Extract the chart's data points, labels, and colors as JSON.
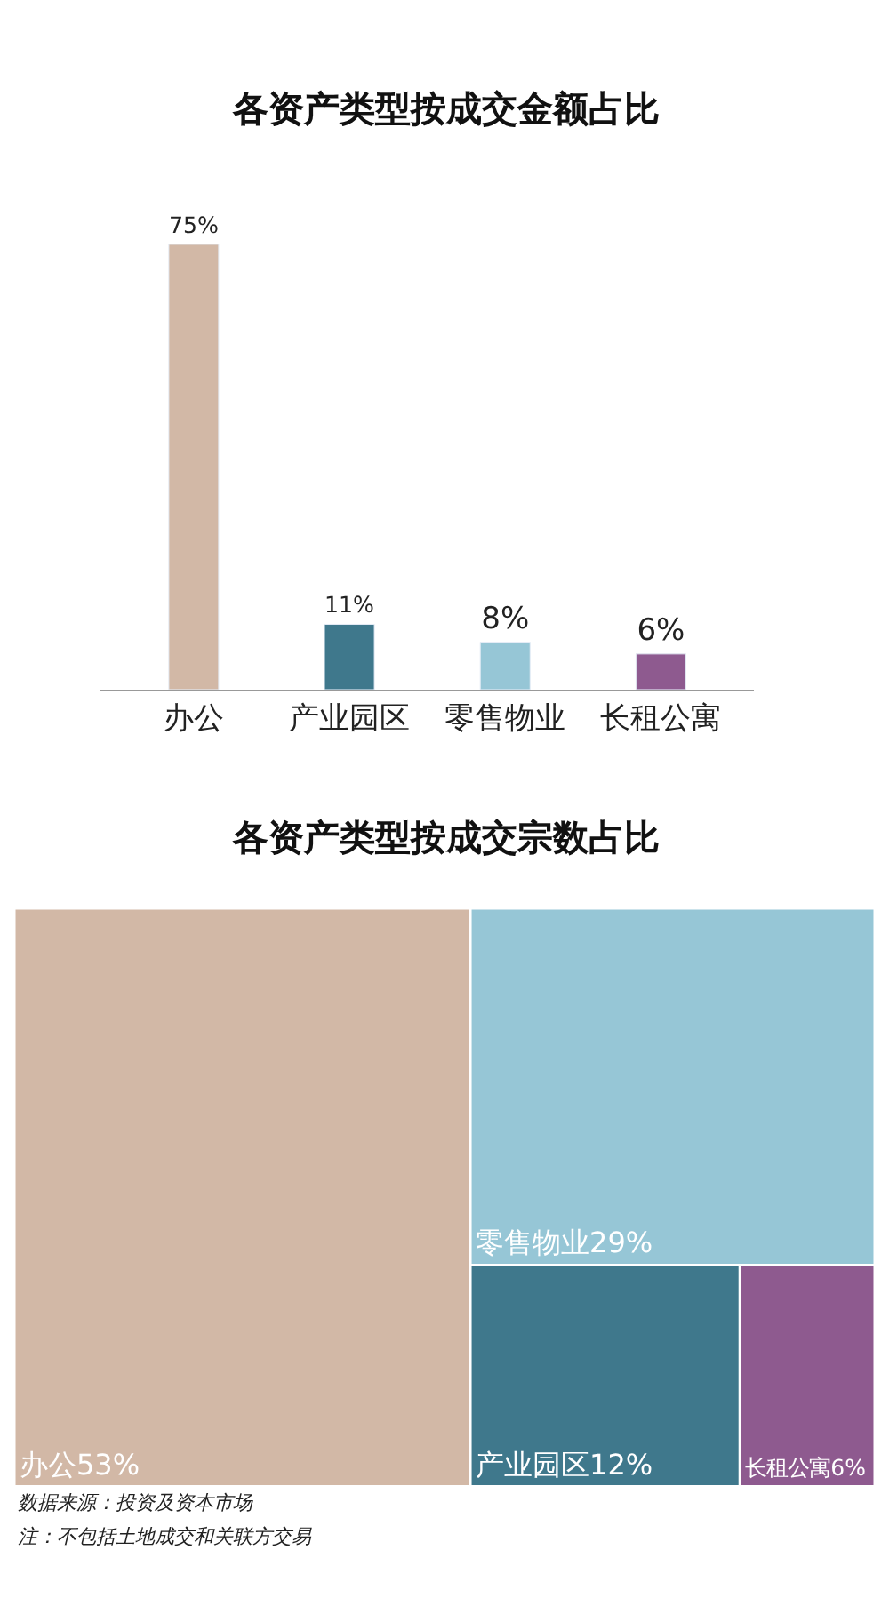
{
  "chart_data": [
    {
      "type": "bar",
      "title": "各资产类型按成交金额占比",
      "categories": [
        "办公",
        "产业园区",
        "零售物业",
        "长租公寓"
      ],
      "values": [
        75,
        11,
        8,
        6
      ],
      "colors": [
        "#d2b8a6",
        "#3f788c",
        "#96c6d6",
        "#8e5a8f"
      ],
      "data_labels": true,
      "value_labels": [
        "75%",
        "11%",
        "8%",
        "6%"
      ]
    },
    {
      "type": "other",
      "title": "各资产类型按成交宗数占比",
      "categories": [
        "办公",
        "零售物业",
        "产业园区",
        "长租公寓"
      ],
      "values": [
        53,
        29,
        12,
        6
      ],
      "value_labels": [
        "53%",
        "29%",
        "12%",
        "6%"
      ],
      "colors": [
        "#d2b8a6",
        "#96c6d6",
        "#3f788c",
        "#8e5a8f"
      ],
      "annotations": [
        "数据来源：投资及资本市场",
        "注：不包括土地成交和关联方交易"
      ]
    }
  ]
}
